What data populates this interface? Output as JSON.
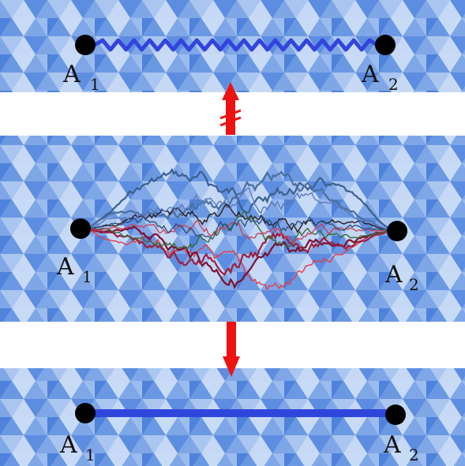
{
  "colors": {
    "background": "#ffffff",
    "panel_light": "#cfe0f6",
    "panel_mid": "#8fb3e8",
    "panel_dark": "#3f77d8",
    "spring": "#3344dd",
    "rod": "#2f46dd",
    "node": "#000000",
    "arrow": "#ee1111"
  },
  "panels": [
    {
      "name": "top",
      "connector": "spring",
      "node_labels": [
        {
          "letter": "A",
          "index": "1"
        },
        {
          "letter": "A",
          "index": "2"
        }
      ]
    },
    {
      "name": "middle",
      "connector": "random-paths",
      "path_colors": [
        "#3a5f8f",
        "#4a6f9f",
        "#e33a4a",
        "#7a1030",
        "#2b1a1a",
        "#9a2040",
        "#3a6a3a",
        "#5a7abf",
        "#c7445f",
        "#2d4f7a"
      ],
      "node_labels": [
        {
          "letter": "A",
          "index": "1"
        },
        {
          "letter": "A",
          "index": "2"
        }
      ]
    },
    {
      "name": "bottom",
      "connector": "straight-rod",
      "node_labels": [
        {
          "letter": "A",
          "index": "1"
        },
        {
          "letter": "A",
          "index": "2"
        }
      ]
    }
  ],
  "arrows": [
    {
      "name": "upper-arrow",
      "direction": "up",
      "struck_through": true
    },
    {
      "name": "lower-arrow",
      "direction": "down",
      "struck_through": false
    }
  ]
}
